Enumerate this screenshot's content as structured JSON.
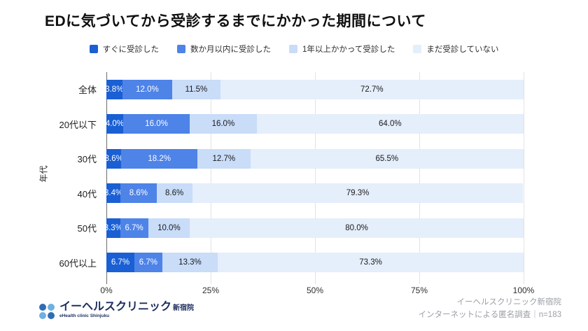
{
  "title": "EDに気づいてから受診するまでにかかった期間について",
  "chart_data": {
    "type": "bar",
    "orientation": "horizontal-stacked",
    "title": "EDに気づいてから受診するまでにかかった期間について",
    "ylabel": "年代",
    "xlabel": "",
    "xlim": [
      0,
      100
    ],
    "x_ticks": [
      "0%",
      "25%",
      "50%",
      "75%",
      "100%"
    ],
    "grid": true,
    "legend_position": "top",
    "categories": [
      "全体",
      "20代以下",
      "30代",
      "40代",
      "50代",
      "60代以上"
    ],
    "series": [
      {
        "name": "すぐに受診した",
        "color": "#1a5fd4",
        "label_color": "#ffffff",
        "values": [
          3.8,
          4.0,
          3.6,
          3.4,
          3.3,
          6.7
        ]
      },
      {
        "name": "数か月以内に受診した",
        "color": "#4e83e8",
        "label_color": "#ffffff",
        "values": [
          12.0,
          16.0,
          18.2,
          8.6,
          6.7,
          6.7
        ]
      },
      {
        "name": "1年以上かかって受診した",
        "color": "#c9dcf8",
        "label_color": "#1a1a1a",
        "values": [
          11.5,
          16.0,
          12.7,
          8.6,
          10.0,
          13.3
        ]
      },
      {
        "name": "まだ受診していない",
        "color": "#e5eefb",
        "label_color": "#1a1a1a",
        "values": [
          72.7,
          64.0,
          65.5,
          79.3,
          80.0,
          73.3
        ]
      }
    ]
  },
  "footer": {
    "logo": {
      "name": "イーヘルスクリニック",
      "branch": "新宿院",
      "subtitle": "eHealth clinic Shinjuku",
      "dot_dark": "#2f6db5",
      "dot_light": "#6fb0e0"
    },
    "source_line1": "イーヘルスクリニック新宿院",
    "source_line2": "インターネットによる匿名調査｜n=183"
  }
}
